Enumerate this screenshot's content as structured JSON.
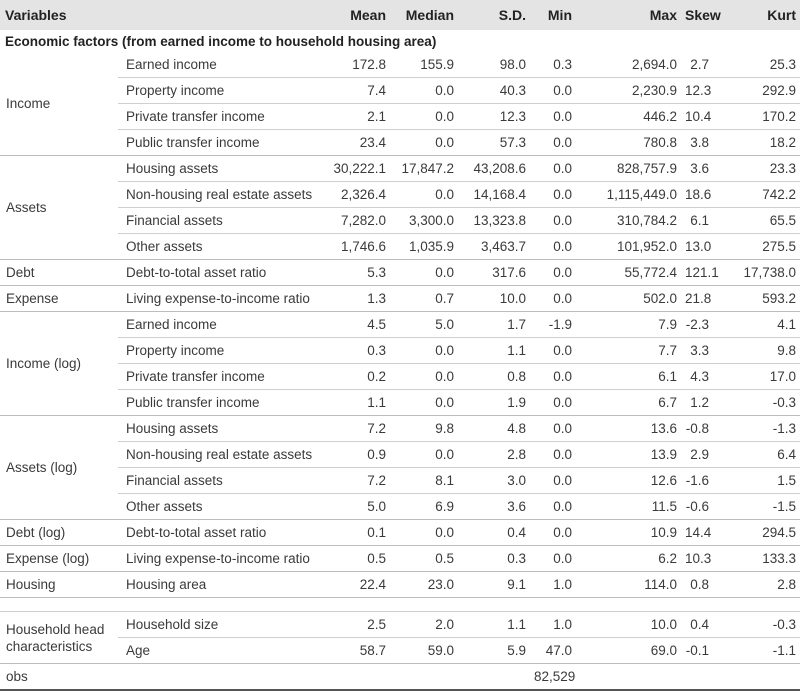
{
  "headers": [
    "Variables",
    "Mean",
    "Median",
    "S.D.",
    "Min",
    "Max",
    "Skew",
    "Kurt"
  ],
  "section_title": "Economic factors (from earned income to household housing area)",
  "groups": [
    {
      "label": "Income",
      "rows": [
        {
          "name": "Earned income",
          "values": [
            "172.8",
            "155.9",
            "98.0",
            "0.3",
            "2,694.0",
            "2.7",
            "25.3"
          ]
        },
        {
          "name": "Property income",
          "values": [
            "7.4",
            "0.0",
            "40.3",
            "0.0",
            "2,230.9",
            "12.3",
            "292.9"
          ]
        },
        {
          "name": "Private transfer income",
          "values": [
            "2.1",
            "0.0",
            "12.3",
            "0.0",
            "446.2",
            "10.4",
            "170.2"
          ]
        },
        {
          "name": "Public transfer income",
          "values": [
            "23.4",
            "0.0",
            "57.3",
            "0.0",
            "780.8",
            "3.8",
            "18.2"
          ]
        }
      ]
    },
    {
      "label": "Assets",
      "rows": [
        {
          "name": "Housing assets",
          "values": [
            "30,222.1",
            "17,847.2",
            "43,208.6",
            "0.0",
            "828,757.9",
            "3.6",
            "23.3"
          ]
        },
        {
          "name": "Non-housing real estate assets",
          "values": [
            "2,326.4",
            "0.0",
            "14,168.4",
            "0.0",
            "1,115,449.0",
            "18.6",
            "742.2"
          ]
        },
        {
          "name": "Financial assets",
          "values": [
            "7,282.0",
            "3,300.0",
            "13,323.8",
            "0.0",
            "310,784.2",
            "6.1",
            "65.5"
          ]
        },
        {
          "name": "Other assets",
          "values": [
            "1,746.6",
            "1,035.9",
            "3,463.7",
            "0.0",
            "101,952.0",
            "13.0",
            "275.5"
          ]
        }
      ]
    },
    {
      "label": "Debt",
      "rows": [
        {
          "name": "Debt-to-total asset ratio",
          "values": [
            "5.3",
            "0.0",
            "317.6",
            "0.0",
            "55,772.4",
            "121.1",
            "17,738.0"
          ]
        }
      ]
    },
    {
      "label": "Expense",
      "rows": [
        {
          "name": "Living expense-to-income ratio",
          "values": [
            "1.3",
            "0.7",
            "10.0",
            "0.0",
            "502.0",
            "21.8",
            "593.2"
          ]
        }
      ]
    },
    {
      "label": "Income (log)",
      "rows": [
        {
          "name": "Earned income",
          "values": [
            "4.5",
            "5.0",
            "1.7",
            "-1.9",
            "7.9",
            "-2.3",
            "4.1"
          ]
        },
        {
          "name": "Property income",
          "values": [
            "0.3",
            "0.0",
            "1.1",
            "0.0",
            "7.7",
            "3.3",
            "9.8"
          ]
        },
        {
          "name": "Private transfer income",
          "values": [
            "0.2",
            "0.0",
            "0.8",
            "0.0",
            "6.1",
            "4.3",
            "17.0"
          ]
        },
        {
          "name": "Public transfer income",
          "values": [
            "1.1",
            "0.0",
            "1.9",
            "0.0",
            "6.7",
            "1.2",
            "-0.3"
          ]
        }
      ]
    },
    {
      "label": "Assets (log)",
      "rows": [
        {
          "name": "Housing assets",
          "values": [
            "7.2",
            "9.8",
            "4.8",
            "0.0",
            "13.6",
            "-0.8",
            "-1.3"
          ]
        },
        {
          "name": "Non-housing real estate assets",
          "values": [
            "0.9",
            "0.0",
            "2.8",
            "0.0",
            "13.9",
            "2.9",
            "6.4"
          ]
        },
        {
          "name": "Financial assets",
          "values": [
            "7.2",
            "8.1",
            "3.0",
            "0.0",
            "12.6",
            "-1.6",
            "1.5"
          ]
        },
        {
          "name": "Other assets",
          "values": [
            "5.0",
            "6.9",
            "3.6",
            "0.0",
            "11.5",
            "-0.6",
            "-1.5"
          ]
        }
      ]
    },
    {
      "label": "Debt (log)",
      "rows": [
        {
          "name": "Debt-to-total asset ratio",
          "values": [
            "0.1",
            "0.0",
            "0.4",
            "0.0",
            "10.9",
            "14.4",
            "294.5"
          ]
        }
      ]
    },
    {
      "label": "Expense (log)",
      "rows": [
        {
          "name": "Living expense-to-income ratio",
          "values": [
            "0.5",
            "0.5",
            "0.3",
            "0.0",
            "6.2",
            "10.3",
            "133.3"
          ]
        }
      ]
    },
    {
      "label": "Housing",
      "rows": [
        {
          "name": "Housing area",
          "values": [
            "22.4",
            "23.0",
            "9.1",
            "1.0",
            "114.0",
            "0.8",
            "2.8"
          ]
        }
      ]
    },
    {
      "label": "Household head characteristics",
      "gap_before": true,
      "rows": [
        {
          "name": "Household size",
          "values": [
            "2.5",
            "2.0",
            "1.1",
            "1.0",
            "10.0",
            "0.4",
            "-0.3"
          ]
        },
        {
          "name": "Age",
          "values": [
            "58.7",
            "59.0",
            "5.9",
            "47.0",
            "69.0",
            "-0.1",
            "-1.1"
          ]
        }
      ]
    }
  ],
  "obs": {
    "label": "obs",
    "value": "82,529"
  }
}
